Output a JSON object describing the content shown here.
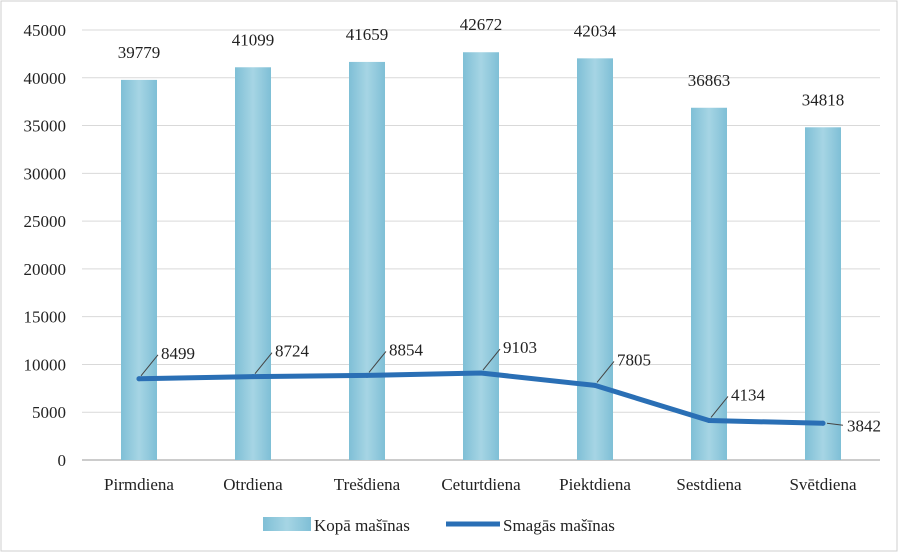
{
  "chart_data": {
    "type": "bar",
    "categories": [
      "Pirmdiena",
      "Otrdiena",
      "Trešdiena",
      "Ceturtdiena",
      "Piektdiena",
      "Sestdiena",
      "Svētdiena"
    ],
    "series": [
      {
        "name": "Kopā mašīnas",
        "type": "bar",
        "values": [
          39779,
          41099,
          41659,
          42672,
          42034,
          36863,
          34818
        ],
        "color": "#8ec7da"
      },
      {
        "name": "Smagās mašīnas",
        "type": "line",
        "values": [
          8499,
          8724,
          8854,
          9103,
          7805,
          4134,
          3842
        ],
        "color": "#2a6fb5"
      }
    ],
    "ylim": [
      0,
      45000
    ],
    "yticks": [
      "0",
      "5000",
      "10000",
      "15000",
      "20000",
      "25000",
      "30000",
      "35000",
      "40000",
      "45000"
    ],
    "grid": true,
    "legend_position": "bottom"
  }
}
